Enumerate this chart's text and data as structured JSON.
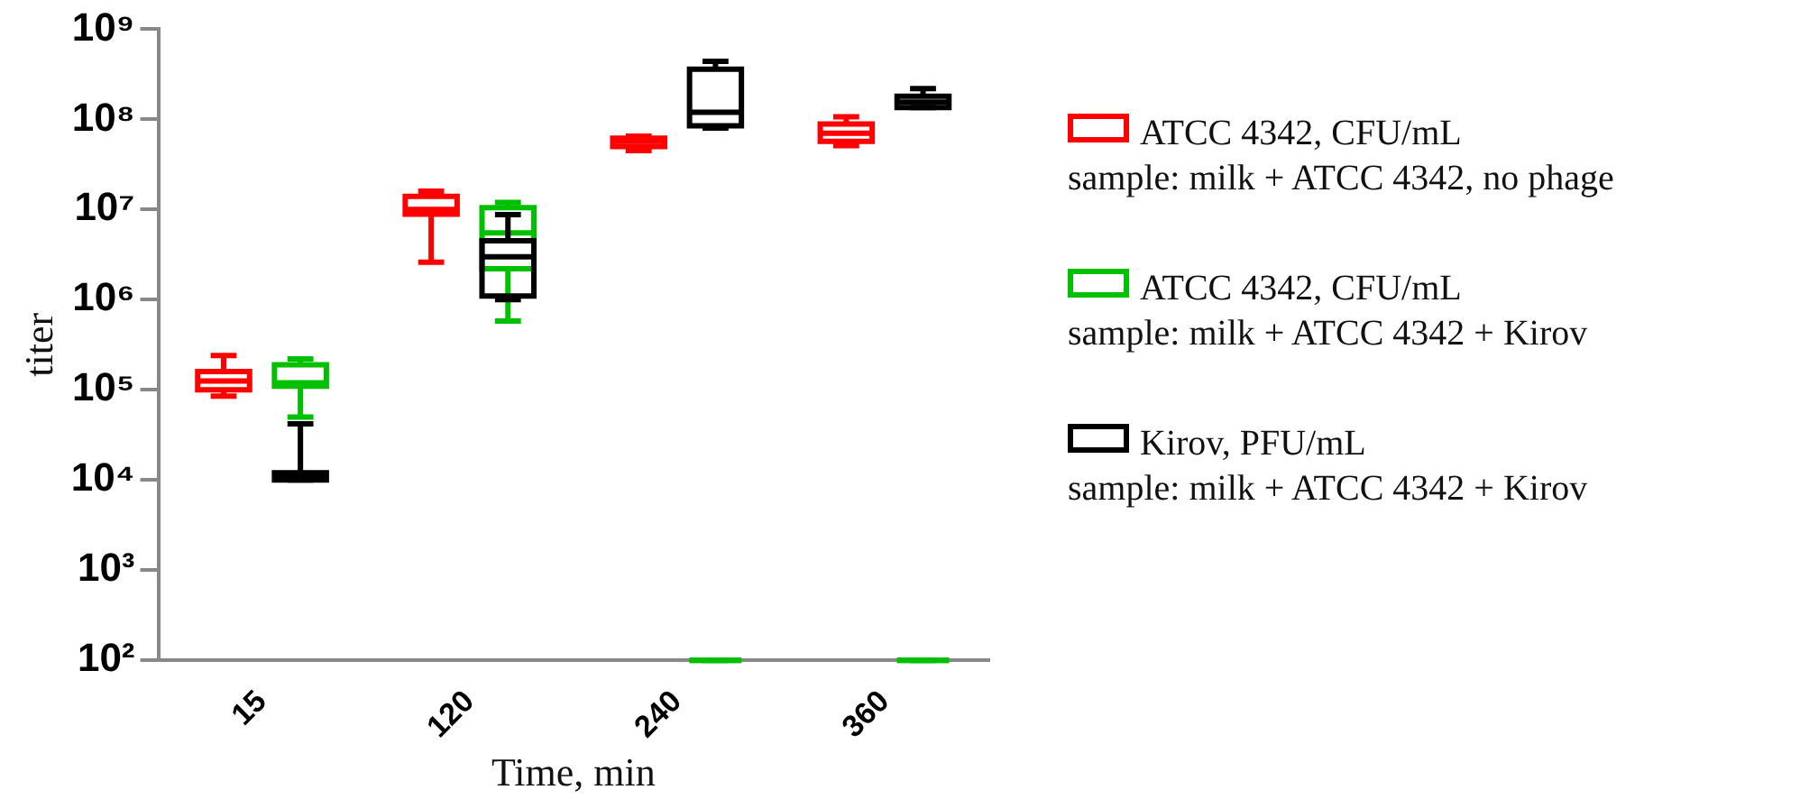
{
  "chart_data": {
    "type": "box",
    "xlabel": "Time, min",
    "ylabel": "titer",
    "categories": [
      "15",
      "120",
      "240",
      "360"
    ],
    "log": "y",
    "ylim": [
      100,
      1000000000
    ],
    "yticks": [
      {
        "value": 100,
        "label": "10²"
      },
      {
        "value": 1000,
        "label": "10³"
      },
      {
        "value": 10000,
        "label": "10⁴"
      },
      {
        "value": 100000,
        "label": "10⁵"
      },
      {
        "value": 1000000,
        "label": "10⁶"
      },
      {
        "value": 10000000,
        "label": "10⁷"
      },
      {
        "value": 100000000,
        "label": "10⁸"
      },
      {
        "value": 1000000000,
        "label": "10⁹"
      }
    ],
    "legend": "right",
    "grid": false,
    "series": [
      {
        "name": "ATCC 4342, CFU/mL\nsample: milk + ATCC 4342, no phage",
        "color": "#ff0000",
        "boxes": [
          {
            "low": 85000,
            "q1": 100000,
            "median": 125000,
            "q3": 160000,
            "high": 240000
          },
          {
            "low": 2600000,
            "q1": 8900000,
            "median": 10000000,
            "q3": 14000000,
            "high": 16000000
          },
          {
            "low": 45000000,
            "q1": 50000000,
            "median": 57000000,
            "q3": 62000000,
            "high": 65000000
          },
          {
            "low": 51000000,
            "q1": 57000000,
            "median": 70000000,
            "q3": 89000000,
            "high": 107000000
          }
        ]
      },
      {
        "name": "ATCC 4342, CFU/mL\nsample: milk + ATCC 4342 + Kirov",
        "color": "#00c000",
        "boxes": [
          {
            "low": 50000,
            "q1": 110000,
            "median": 120000,
            "q3": 190000,
            "high": 220000
          },
          {
            "low": 580000,
            "q1": 2200000,
            "median": 5500000,
            "q3": 10500000,
            "high": 12000000
          },
          {
            "low": 100,
            "q1": 100,
            "median": 100,
            "q3": 100,
            "high": 100
          },
          {
            "low": 100,
            "q1": 100,
            "median": 100,
            "q3": 100,
            "high": 100
          }
        ]
      },
      {
        "name": "Kirov, PFU/mL\nsample: milk + ATCC 4342 + Kirov",
        "color": "#000000",
        "boxes": [
          {
            "low": 10000,
            "q1": 10000,
            "median": 11000,
            "q3": 12000,
            "high": 42000
          },
          {
            "low": 1000000,
            "q1": 1100000,
            "median": 3000000,
            "q3": 4500000,
            "high": 8800000
          },
          {
            "low": 80000000,
            "q1": 85000000,
            "median": 120000000,
            "q3": 360000000,
            "high": 440000000
          },
          {
            "low": 135000000,
            "q1": 135000000,
            "median": 155000000,
            "q3": 180000000,
            "high": 220000000
          }
        ]
      }
    ]
  }
}
